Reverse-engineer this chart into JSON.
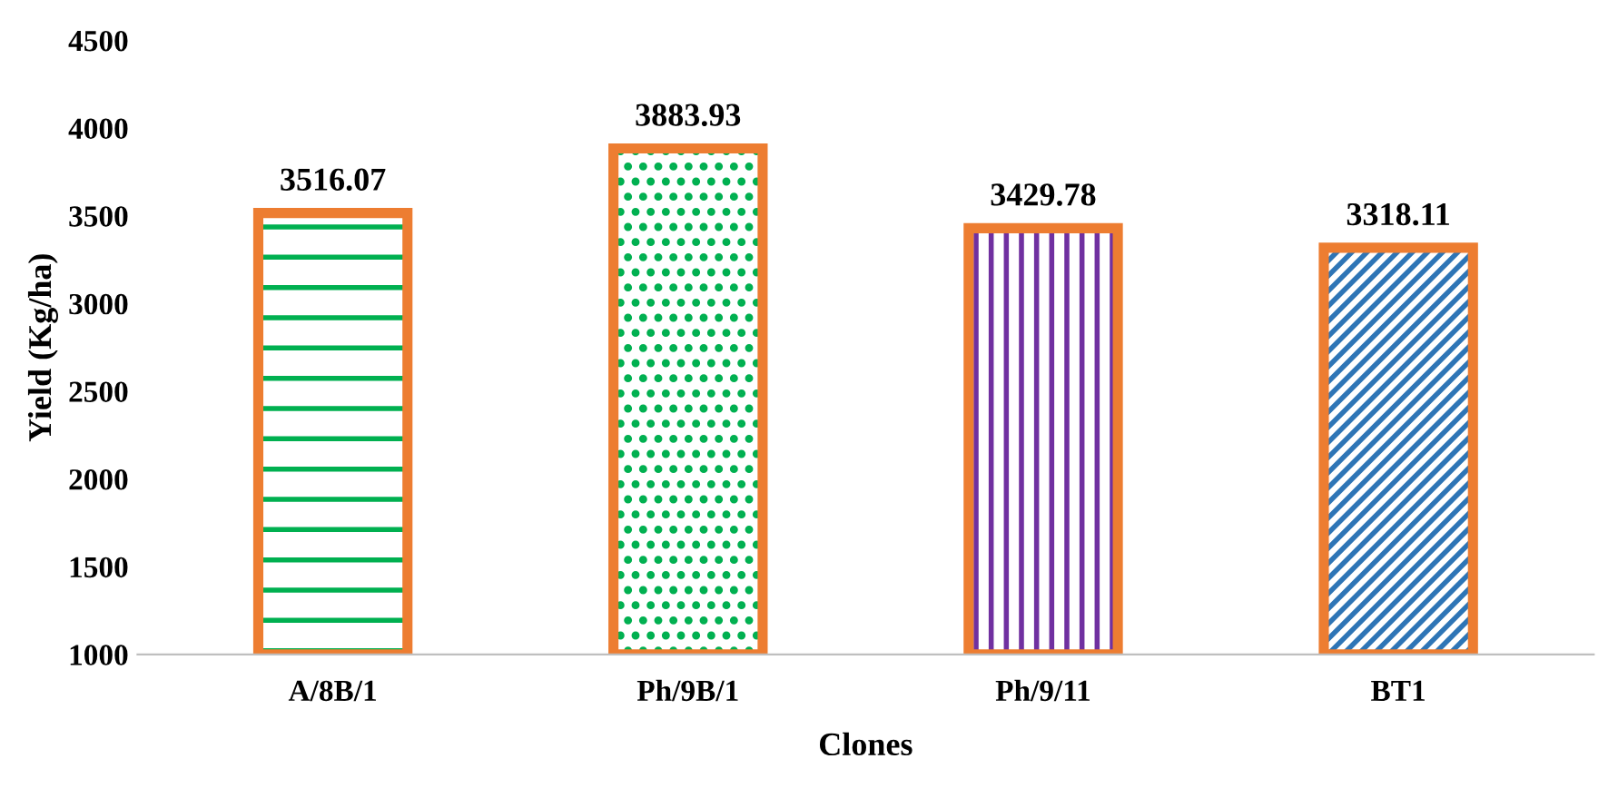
{
  "chart_data": {
    "type": "bar",
    "xlabel": "Clones",
    "ylabel": "Yield (Kg/ha)",
    "categories": [
      "A/8B/1",
      "Ph/9B/1",
      "Ph/9/11",
      "BT1"
    ],
    "values": [
      3516.07,
      3883.93,
      3429.78,
      3318.11
    ],
    "colors": [
      "#ed7d31",
      "#ed7d31",
      "#ed7d31",
      "#ed7d31"
    ],
    "data_labels": true,
    "ylim": [
      1000,
      4500
    ],
    "yticks": [
      1000,
      1500,
      2000,
      2500,
      3000,
      3500,
      4000,
      4500
    ],
    "grid": false,
    "legend": false
  }
}
